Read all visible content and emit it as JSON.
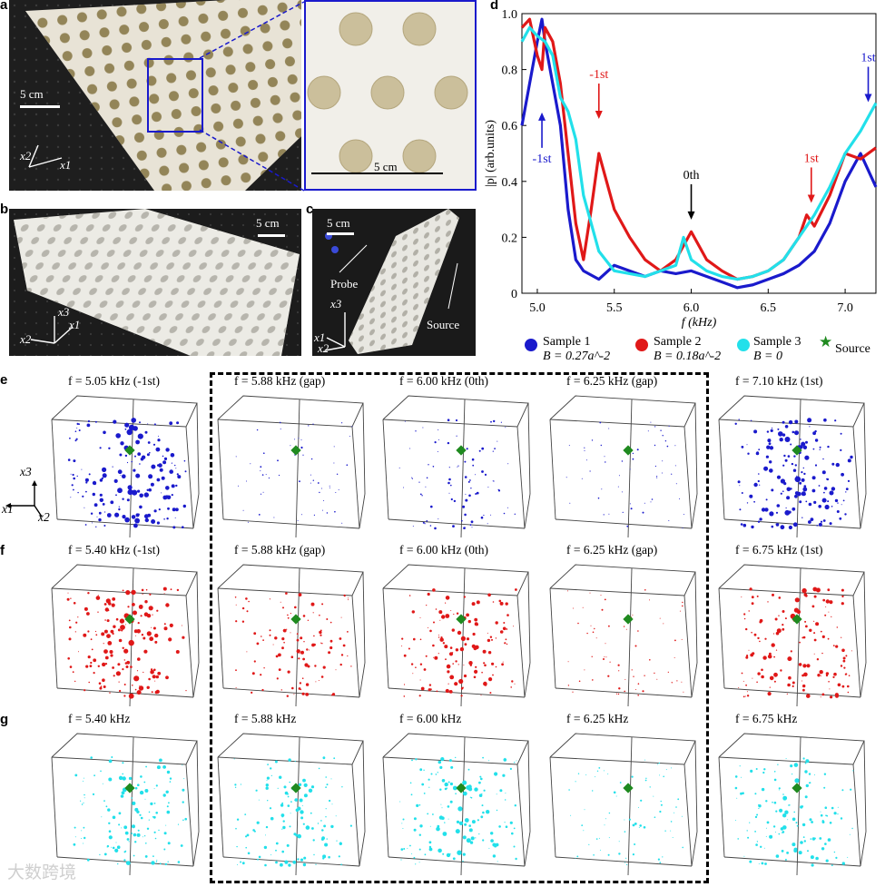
{
  "panels": {
    "a": {
      "label": "a",
      "scale": "5 cm",
      "axis_x2": "x2",
      "axis_x1": "x1",
      "inset_scale": "5 cm"
    },
    "b": {
      "label": "b",
      "scale": "5 cm",
      "axis_x3": "x3",
      "axis_x1": "x1",
      "axis_x2": "x2"
    },
    "c": {
      "label": "c",
      "scale": "5 cm",
      "probe": "Probe",
      "source": "Source",
      "axis_x3": "x3",
      "axis_x1": "x1",
      "axis_x2": "x2"
    },
    "d": {
      "label": "d"
    },
    "e": {
      "label": "e"
    },
    "f": {
      "label": "f"
    },
    "g": {
      "label": "g"
    }
  },
  "chart_data": {
    "type": "line",
    "xlabel": "f (kHz)",
    "ylabel": "|p| (arb.units)",
    "xlim": [
      4.9,
      7.2
    ],
    "ylim": [
      0,
      1.0
    ],
    "xticks": [
      "5.0",
      "5.5",
      "6.0",
      "6.5",
      "7.0"
    ],
    "yticks": [
      "0",
      "0.2",
      "0.4",
      "0.6",
      "0.8",
      "1.0"
    ],
    "series": [
      {
        "name": "Sample 1",
        "sublabel": "B = 0.27a^-2",
        "color": "#1a1acc",
        "x": [
          4.9,
          4.95,
          5.0,
          5.03,
          5.05,
          5.1,
          5.15,
          5.2,
          5.25,
          5.3,
          5.4,
          5.5,
          5.6,
          5.7,
          5.8,
          5.9,
          6.0,
          6.1,
          6.2,
          6.3,
          6.4,
          6.5,
          6.6,
          6.7,
          6.8,
          6.9,
          7.0,
          7.1,
          7.2
        ],
        "y": [
          0.6,
          0.75,
          0.9,
          0.98,
          0.9,
          0.75,
          0.6,
          0.3,
          0.12,
          0.08,
          0.05,
          0.1,
          0.08,
          0.06,
          0.08,
          0.07,
          0.08,
          0.06,
          0.04,
          0.02,
          0.03,
          0.05,
          0.07,
          0.1,
          0.15,
          0.25,
          0.4,
          0.5,
          0.38
        ]
      },
      {
        "name": "Sample 2",
        "sublabel": "B = 0.18a^-2",
        "color": "#e01818",
        "x": [
          4.9,
          4.95,
          5.0,
          5.03,
          5.05,
          5.1,
          5.15,
          5.2,
          5.25,
          5.3,
          5.35,
          5.4,
          5.45,
          5.5,
          5.6,
          5.7,
          5.8,
          5.9,
          6.0,
          6.1,
          6.2,
          6.3,
          6.4,
          6.5,
          6.6,
          6.7,
          6.75,
          6.8,
          6.9,
          7.0,
          7.1,
          7.2
        ],
        "y": [
          0.95,
          0.98,
          0.85,
          0.8,
          0.95,
          0.9,
          0.75,
          0.5,
          0.25,
          0.12,
          0.3,
          0.5,
          0.4,
          0.3,
          0.2,
          0.12,
          0.08,
          0.12,
          0.22,
          0.12,
          0.08,
          0.05,
          0.06,
          0.08,
          0.12,
          0.2,
          0.28,
          0.24,
          0.35,
          0.5,
          0.48,
          0.52
        ]
      },
      {
        "name": "Sample 3",
        "sublabel": "B = 0",
        "color": "#22e0ea",
        "x": [
          4.9,
          4.95,
          5.0,
          5.05,
          5.1,
          5.15,
          5.2,
          5.25,
          5.3,
          5.4,
          5.5,
          5.6,
          5.7,
          5.8,
          5.9,
          5.95,
          6.0,
          6.1,
          6.2,
          6.3,
          6.4,
          6.5,
          6.6,
          6.7,
          6.8,
          6.9,
          7.0,
          7.1,
          7.2
        ],
        "y": [
          0.9,
          0.95,
          0.92,
          0.9,
          0.85,
          0.7,
          0.65,
          0.55,
          0.35,
          0.15,
          0.08,
          0.07,
          0.06,
          0.08,
          0.1,
          0.2,
          0.12,
          0.08,
          0.06,
          0.05,
          0.06,
          0.08,
          0.12,
          0.2,
          0.28,
          0.38,
          0.5,
          0.58,
          0.68
        ]
      }
    ],
    "annotations": [
      {
        "text": "-1st",
        "color": "#1a1acc",
        "x": 5.03,
        "y": 0.52,
        "dir": "up"
      },
      {
        "text": "-1st",
        "color": "#e01818",
        "x": 5.4,
        "y": 0.62,
        "dir": "down"
      },
      {
        "text": "0th",
        "color": "#000000",
        "x": 6.0,
        "y": 0.26,
        "dir": "down"
      },
      {
        "text": "1st",
        "color": "#e01818",
        "x": 6.78,
        "y": 0.32,
        "dir": "down"
      },
      {
        "text": "1st",
        "color": "#1a1acc",
        "x": 7.15,
        "y": 0.68,
        "dir": "down"
      }
    ],
    "legend": {
      "source_label": "Source",
      "source_color": "#1f8a1f"
    }
  },
  "grid": {
    "rows": [
      {
        "label": "e",
        "color": "#1a1acc",
        "titles": [
          "f = 5.05 kHz (-1st)",
          "f = 5.88 kHz (gap)",
          "f = 6.00 kHz (0th)",
          "f = 6.25 kHz (gap)",
          "f = 7.10 kHz (1st)"
        ],
        "density": [
          0.9,
          0.35,
          0.45,
          0.3,
          0.9
        ]
      },
      {
        "label": "f",
        "color": "#e01818",
        "titles": [
          "f = 5.40 kHz (-1st)",
          "f = 5.88 kHz (gap)",
          "f = 6.00 kHz (0th)",
          "f = 6.25 kHz (gap)",
          "f = 6.75 kHz (1st)"
        ],
        "density": [
          0.85,
          0.6,
          0.75,
          0.35,
          0.8
        ]
      },
      {
        "label": "g",
        "color": "#22e0ea",
        "titles": [
          "f = 5.40 kHz",
          "f = 5.88 kHz",
          "f = 6.00 kHz",
          "f = 6.25 kHz",
          "f = 6.75 kHz"
        ],
        "density": [
          0.7,
          0.7,
          0.75,
          0.4,
          0.7
        ]
      }
    ],
    "axes_labels": {
      "x3": "x3",
      "x1": "x1",
      "x2": "x2"
    }
  },
  "watermark": "大数跨境"
}
